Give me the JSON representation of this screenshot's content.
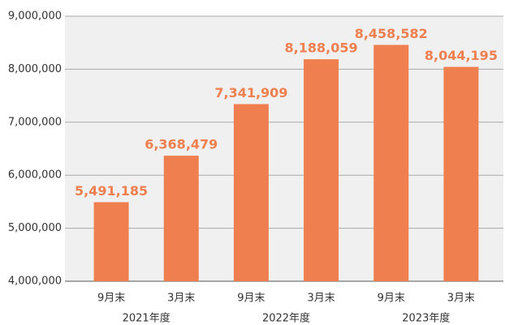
{
  "chart_data": {
    "type": "bar",
    "categories": [
      "9月末",
      "3月末",
      "9月末",
      "3月末",
      "9月末",
      "3月末"
    ],
    "groups": [
      "2021年度",
      "2022年度",
      "2023年度"
    ],
    "values": [
      5491185,
      6368479,
      7341909,
      8188059,
      8458582,
      8044195
    ],
    "value_labels": [
      "5,491,185",
      "6,368,479",
      "7,341,909",
      "8,188,059",
      "8,458,582",
      "8,044,195"
    ],
    "color": "#ef7f4f",
    "ylim": [
      4000000,
      9000000
    ],
    "yticks": [
      {
        "value": 4000000,
        "label": "4,000,000"
      },
      {
        "value": 5000000,
        "label": "5,000,000"
      },
      {
        "value": 6000000,
        "label": "6,000,000"
      },
      {
        "value": 7000000,
        "label": "7,000,000"
      },
      {
        "value": 8000000,
        "label": "8,000,000"
      },
      {
        "value": 9000000,
        "label": "9,000,000"
      }
    ],
    "grid": true
  }
}
